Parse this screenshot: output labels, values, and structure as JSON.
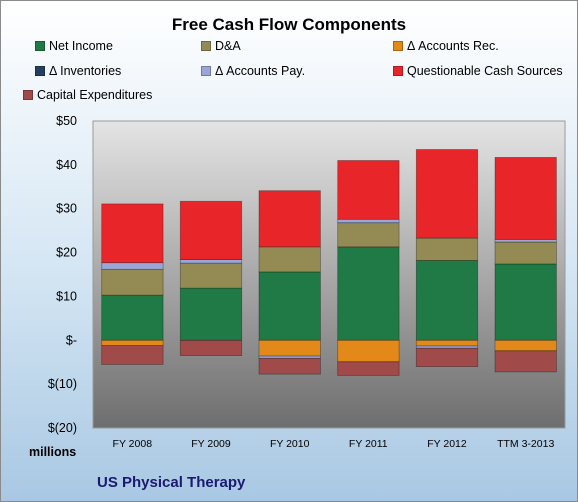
{
  "chart_data": {
    "type": "bar",
    "stacked": true,
    "title": "Free Cash Flow Components",
    "categories": [
      "FY 2008",
      "FY 2009",
      "FY 2010",
      "FY 2011",
      "FY 2012",
      "TTM 3-2013"
    ],
    "y_tick_labels": [
      "$(20)",
      "$(10)",
      "$-",
      "$10",
      "$20",
      "$30",
      "$40",
      "$50"
    ],
    "ylim": [
      -20,
      50
    ],
    "ylabel": "millions",
    "grid": false,
    "legend_position": "top",
    "series": [
      {
        "name": "Net Income",
        "color": "#1f7a45",
        "values": [
          10.3,
          11.9,
          15.6,
          21.3,
          18.2,
          17.4
        ]
      },
      {
        "name": "D&A",
        "color": "#948a54",
        "values": [
          5.9,
          5.7,
          5.7,
          5.5,
          5.1,
          5.0
        ]
      },
      {
        "name": "Δ Accounts Rec.",
        "color": "#e3891a",
        "values": [
          -1.2,
          0,
          -3.6,
          -4.9,
          -1.3,
          -2.4
        ]
      },
      {
        "name": "Δ Inventories",
        "color": "#243f60",
        "values": [
          0,
          0,
          0,
          0,
          0,
          0
        ]
      },
      {
        "name": "Δ Accounts Pay.",
        "color": "#9aa6d6",
        "values": [
          1.5,
          0.8,
          -0.5,
          0.8,
          -0.5,
          0.6
        ]
      },
      {
        "name": "Questionable Cash Sources",
        "color": "#e8262a",
        "values": [
          13.4,
          13.3,
          12.8,
          13.4,
          20.2,
          18.7
        ]
      },
      {
        "name": "Capital Expenditures",
        "color": "#a04a4a",
        "values": [
          -4.3,
          -3.5,
          -3.6,
          -3.1,
          -4.2,
          -4.8
        ]
      }
    ]
  },
  "footer": {
    "units": "millions",
    "company": "US Physical Therapy"
  }
}
